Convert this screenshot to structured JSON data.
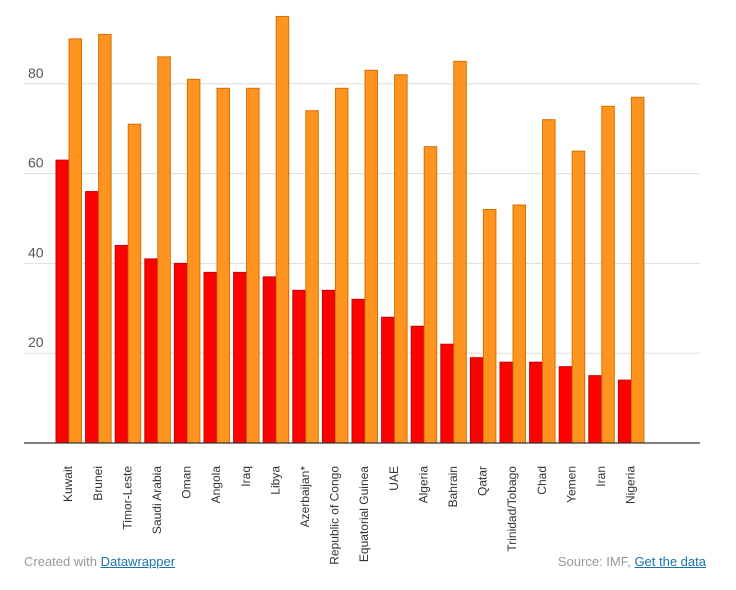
{
  "chart_data": {
    "type": "bar",
    "title": "",
    "xlabel": "",
    "ylabel": "",
    "ylim": [
      0,
      95
    ],
    "yticks": [
      20,
      40,
      60,
      80
    ],
    "grid": true,
    "categories": [
      "Kuwait",
      "Brunei",
      "Timor-Leste",
      "Saudi Arabia",
      "Oman",
      "Angola",
      "Iraq",
      "Libya",
      "Azerbaijan*",
      "Republic of Congo",
      "Equatorial Guinea",
      "UAE",
      "Algeria",
      "Bahrain",
      "Qatar",
      "Trinidad/Tobago",
      "Chad",
      "Yemen",
      "Iran",
      "Nigeria"
    ],
    "series": [
      {
        "color": "#ff0000",
        "stroke": "#c80000",
        "values": [
          63,
          56,
          44,
          41,
          40,
          38,
          38,
          37,
          34,
          34,
          32,
          28,
          26,
          22,
          19,
          18,
          18,
          17,
          15,
          14
        ]
      },
      {
        "color": "#ff9421",
        "stroke": "#d46f00",
        "values": [
          90,
          91,
          71,
          86,
          81,
          79,
          79,
          95,
          74,
          79,
          83,
          82,
          66,
          85,
          52,
          53,
          72,
          65,
          75,
          77
        ]
      }
    ]
  },
  "footer": {
    "created_prefix": "Created with ",
    "created_link": "Datawrapper",
    "source_prefix": "Source: IMF, ",
    "source_link": "Get the data"
  }
}
